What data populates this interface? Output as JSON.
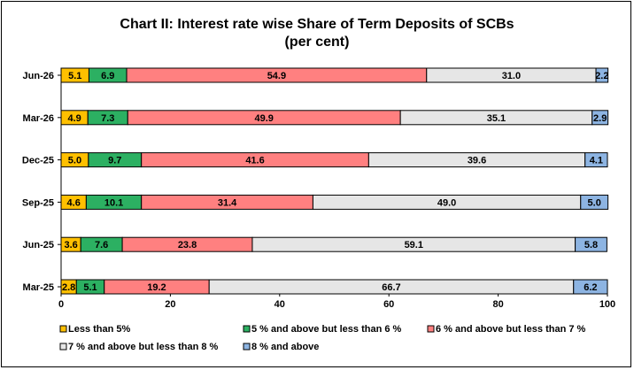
{
  "chart_data": {
    "type": "bar",
    "orientation": "horizontal",
    "stacked": true,
    "title": "Chart II:  Interest rate wise Share of Term Deposits of SCBs",
    "subtitle": "(per cent)",
    "categories": [
      "Jun-26",
      "Mar-26",
      "Dec-25",
      "Sep-25",
      "Jun-25",
      "Mar-25"
    ],
    "xlim": [
      0,
      100
    ],
    "xticks": [
      "0",
      "20",
      "40",
      "60",
      "80",
      "100"
    ],
    "grid": false,
    "legend_position": "bottom",
    "series": [
      {
        "name": "Less than 5%",
        "color": "#ffc000",
        "values": [
          5.1,
          4.9,
          5.0,
          4.6,
          3.6,
          2.8
        ],
        "labels": [
          "5.1",
          "4.9",
          "5.0",
          "4.6",
          "3.6",
          "2.8"
        ]
      },
      {
        "name": "5 % and above but less than 6 %",
        "color": "#2cb062",
        "values": [
          6.9,
          7.3,
          9.7,
          10.1,
          7.6,
          5.1
        ],
        "labels": [
          "6.9",
          "7.3",
          "9.7",
          "10.1",
          "7.6",
          "5.1"
        ]
      },
      {
        "name": "6 % and above but less than 7 %",
        "color": "#ff8080",
        "values": [
          54.9,
          49.9,
          41.6,
          31.4,
          23.8,
          19.2
        ],
        "labels": [
          "54.9",
          "49.9",
          "41.6",
          "31.4",
          "23.8",
          "19.2"
        ]
      },
      {
        "name": "7 % and above but less than 8 %",
        "color": "#e6e6e6",
        "values": [
          31.0,
          35.1,
          39.6,
          49.0,
          59.1,
          66.7
        ],
        "labels": [
          "31.0",
          "35.1",
          "39.6",
          "49.0",
          "59.1",
          "66.7"
        ]
      },
      {
        "name": "8 % and above",
        "color": "#8db4e2",
        "values": [
          2.2,
          2.9,
          4.1,
          5.0,
          5.8,
          6.2
        ],
        "labels": [
          "2.2",
          "2.9",
          "4.1",
          "5.0",
          "5.8",
          "6.2"
        ]
      }
    ]
  }
}
